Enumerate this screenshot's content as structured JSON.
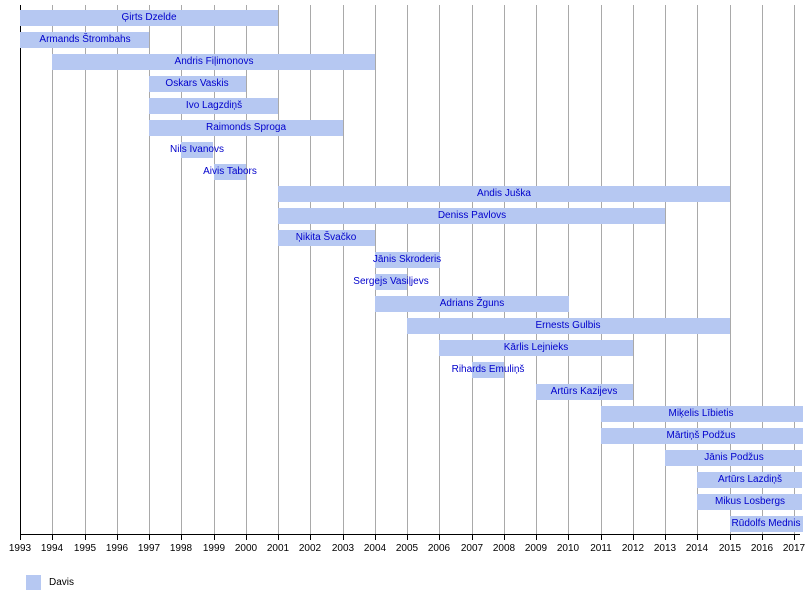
{
  "colors": {
    "background": "#ffffff",
    "bar_fill": "#b6c8f2",
    "bar_text": "#0000cc",
    "gridline": "#a9a9a9",
    "axis": "#000000",
    "tick_label_text": "#000000"
  },
  "legend": {
    "items": [
      {
        "label": "Davis",
        "color": "#b6c8f2"
      }
    ]
  },
  "chart_data": {
    "type": "bar",
    "subtype": "gantt-timeline",
    "title": "",
    "xlabel": "",
    "ylabel": "",
    "grid": true,
    "legend_position": "bottom-left",
    "x_axis": {
      "range_start": 1993,
      "range_end": 2017,
      "tick_labels": [
        "1993",
        "1994",
        "1995",
        "1996",
        "1997",
        "1998",
        "1999",
        "2000",
        "2001",
        "2002",
        "2003",
        "2004",
        "2005",
        "2006",
        "2007",
        "2008",
        "2009",
        "2010",
        "2011",
        "2012",
        "2013",
        "2014",
        "2015",
        "2016",
        "2017"
      ]
    },
    "series": [
      {
        "name": "Ģirts Dzelde",
        "start": 1993,
        "end": 2001
      },
      {
        "name": "Armands Štrombahs",
        "start": 1993,
        "end": 1997
      },
      {
        "name": "Andris Fiļimonovs",
        "start": 1994,
        "end": 2004
      },
      {
        "name": "Oskars Vaskis",
        "start": 1997,
        "end": 2000
      },
      {
        "name": "Ivo Lagzdiņš",
        "start": 1997,
        "end": 2001
      },
      {
        "name": "Raimonds Sproga",
        "start": 1997,
        "end": 2003
      },
      {
        "name": "Nils Ivanovs",
        "start": 1998,
        "end": 1999
      },
      {
        "name": "Aivis Tabors",
        "start": 1999,
        "end": 2000
      },
      {
        "name": "Andis Juška",
        "start": 2001,
        "end": 2015
      },
      {
        "name": "Deniss Pavlovs",
        "start": 2001,
        "end": 2013
      },
      {
        "name": "Ņikita Švačko",
        "start": 2001,
        "end": 2004
      },
      {
        "name": "Jānis Skroderis",
        "start": 2004,
        "end": 2006
      },
      {
        "name": "Sergejs Vasiļjevs",
        "start": 2004,
        "end": 2005
      },
      {
        "name": "Adrians Žguns",
        "start": 2004,
        "end": 2010
      },
      {
        "name": "Ernests Gulbis",
        "start": 2005,
        "end": 2015
      },
      {
        "name": "Kārlis Lejnieks",
        "start": 2006,
        "end": 2012
      },
      {
        "name": "Rihards Emuliņš",
        "start": 2007,
        "end": 2008
      },
      {
        "name": "Artūrs Kazijevs",
        "start": 2009,
        "end": 2012
      },
      {
        "name": "Miķelis Lībietis",
        "start": 2011,
        "end": 2017,
        "ongoing": true
      },
      {
        "name": "Mārtiņš Podžus",
        "start": 2011,
        "end": 2017,
        "ongoing": true
      },
      {
        "name": "Jānis Podžus",
        "start": 2013,
        "end": 2017,
        "ongoing": true
      },
      {
        "name": "Artūrs Lazdiņš",
        "start": 2014,
        "end": 2017,
        "ongoing": true
      },
      {
        "name": "Mikus Losbergs",
        "start": 2014,
        "end": 2017,
        "ongoing": true
      },
      {
        "name": "Rūdolfs Mednis",
        "start": 2015,
        "end": 2017,
        "ongoing": true
      }
    ]
  }
}
